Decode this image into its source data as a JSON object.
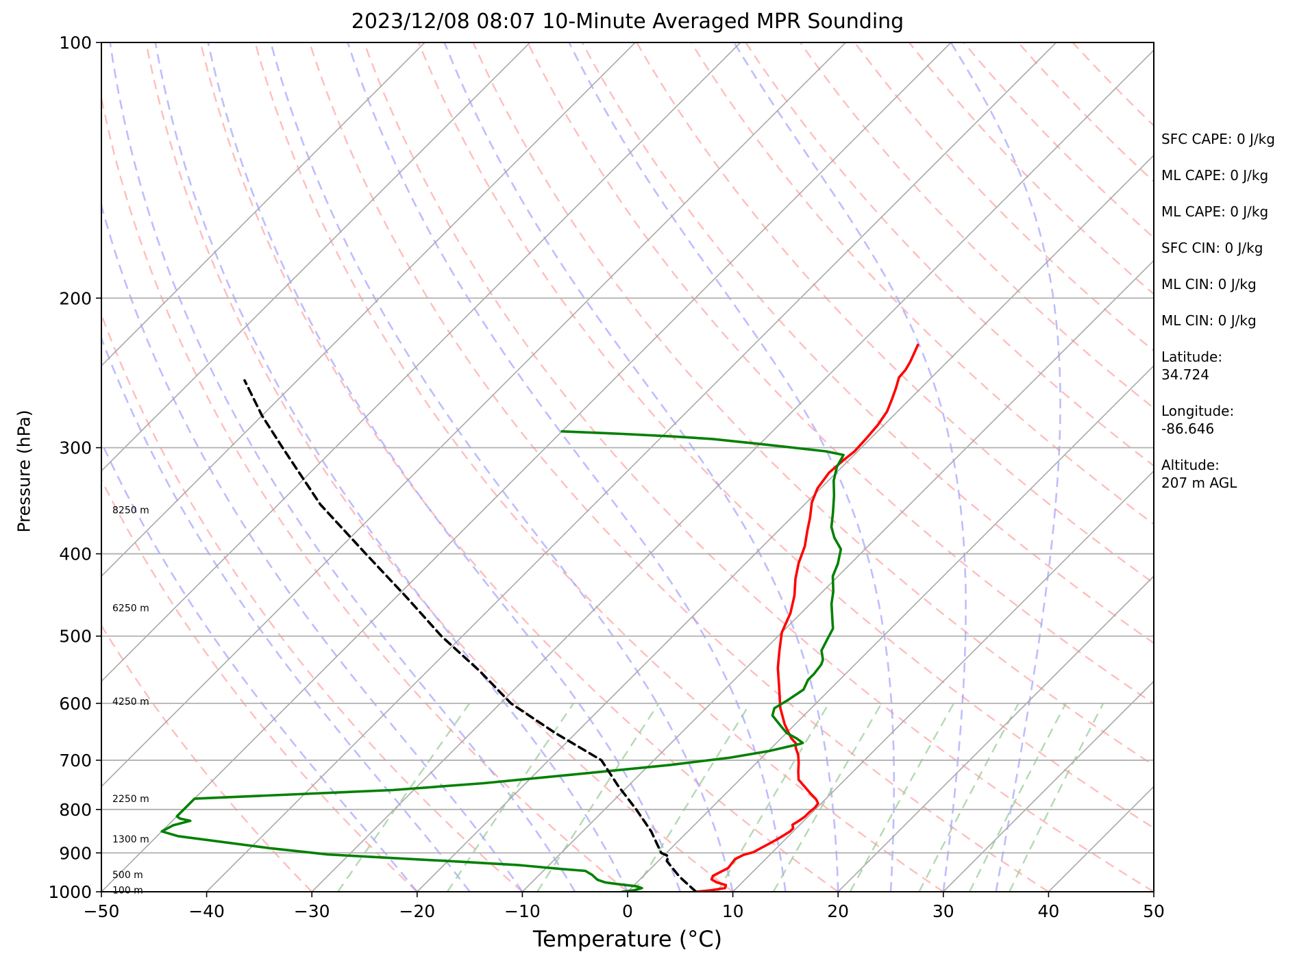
{
  "chart_data": {
    "type": "line",
    "subtype": "skew-T log-P sounding",
    "title": "2023/12/08 08:07 10-Minute Averaged MPR Sounding",
    "xlabel": "Temperature (°C)",
    "ylabel": "Pressure (hPa)",
    "xlim": [
      -50,
      50
    ],
    "ylim": [
      1000,
      100
    ],
    "y_scale": "log",
    "grid": true,
    "x_ticks": [
      "−50",
      "−40",
      "−30",
      "−20",
      "−10",
      "0",
      "10",
      "20",
      "30",
      "40",
      "50"
    ],
    "y_ticks": [
      "100",
      "200",
      "300",
      "400",
      "500",
      "600",
      "700",
      "800",
      "900",
      "1000"
    ],
    "height_labels": [
      {
        "label": "100 m",
        "pressure": 995
      },
      {
        "label": "500 m",
        "pressure": 955
      },
      {
        "label": "1300 m",
        "pressure": 867
      },
      {
        "label": "2250 m",
        "pressure": 777
      },
      {
        "label": "4250 m",
        "pressure": 597
      },
      {
        "label": "6250 m",
        "pressure": 463
      },
      {
        "label": "8250 m",
        "pressure": 355
      }
    ],
    "series": [
      {
        "role": "temperature",
        "color": "#ff0000",
        "points": [
          [
            6.5,
            1000
          ],
          [
            7.8,
            996
          ],
          [
            8.9,
            990
          ],
          [
            8.7,
            982
          ],
          [
            7.6,
            975
          ],
          [
            6.8,
            967
          ],
          [
            6.6,
            958
          ],
          [
            7.0,
            946
          ],
          [
            7.3,
            938
          ],
          [
            7.2,
            926
          ],
          [
            7.1,
            915
          ],
          [
            7.5,
            905
          ],
          [
            8.2,
            898
          ],
          [
            8.5,
            889
          ],
          [
            8.8,
            880
          ],
          [
            9.2,
            868
          ],
          [
            9.5,
            857
          ],
          [
            9.7,
            849
          ],
          [
            9.7,
            842
          ],
          [
            9.3,
            834
          ],
          [
            9.5,
            826
          ],
          [
            9.7,
            816
          ],
          [
            9.7,
            806
          ],
          [
            9.8,
            796
          ],
          [
            9.7,
            787
          ],
          [
            9.1,
            778
          ],
          [
            8.2,
            768
          ],
          [
            7.0,
            754
          ],
          [
            5.6,
            738
          ],
          [
            4.8,
            722
          ],
          [
            4.0,
            705
          ],
          [
            3.2,
            690
          ],
          [
            2.3,
            677
          ],
          [
            1.9,
            669
          ],
          [
            1.0,
            660
          ],
          [
            -1.0,
            635
          ],
          [
            -3.0,
            607
          ],
          [
            -5.0,
            575
          ],
          [
            -7.0,
            545
          ],
          [
            -8.5,
            520
          ],
          [
            -10.0,
            495
          ],
          [
            -11.0,
            470
          ],
          [
            -12.3,
            448
          ],
          [
            -13.8,
            428
          ],
          [
            -15.0,
            410
          ],
          [
            -16.0,
            392
          ],
          [
            -17.3,
            375
          ],
          [
            -18.2,
            363
          ],
          [
            -19.5,
            348
          ],
          [
            -20.3,
            335
          ],
          [
            -20.7,
            321
          ],
          [
            -20.5,
            310
          ],
          [
            -20.3,
            303
          ],
          [
            -20.4,
            293
          ],
          [
            -20.6,
            282
          ],
          [
            -21.0,
            272
          ],
          [
            -21.7,
            263
          ],
          [
            -22.4,
            255
          ],
          [
            -23.1,
            248
          ],
          [
            -23.2,
            243
          ],
          [
            -23.5,
            238
          ],
          [
            -23.9,
            233
          ],
          [
            -24.4,
            227
          ]
        ]
      },
      {
        "role": "dewpoint",
        "color": "#008000",
        "points": [
          [
            -0.5,
            1000
          ],
          [
            0.5,
            996
          ],
          [
            1.0,
            990
          ],
          [
            0.3,
            985
          ],
          [
            -1.5,
            980
          ],
          [
            -3.0,
            975
          ],
          [
            -4.0,
            968
          ],
          [
            -5.0,
            955
          ],
          [
            -6.0,
            945
          ],
          [
            -8.5,
            940
          ],
          [
            -13.0,
            930
          ],
          [
            -20.0,
            920
          ],
          [
            -32.0,
            904
          ],
          [
            -38.0,
            889
          ],
          [
            -48.0,
            860
          ],
          [
            -50.0,
            849
          ],
          [
            -49.5,
            835
          ],
          [
            -48.3,
            825
          ],
          [
            -49.5,
            820
          ],
          [
            -50.0,
            815
          ],
          [
            -50.0,
            777
          ],
          [
            -42.0,
            769
          ],
          [
            -32.0,
            759
          ],
          [
            -24.0,
            745
          ],
          [
            -16.0,
            727
          ],
          [
            -8.0,
            709
          ],
          [
            -3.0,
            695
          ],
          [
            0.0,
            683
          ],
          [
            2.3,
            670
          ],
          [
            2.5,
            668
          ],
          [
            1.5,
            660
          ],
          [
            0.0,
            650
          ],
          [
            -1.5,
            635
          ],
          [
            -3.0,
            620
          ],
          [
            -3.5,
            608
          ],
          [
            -3.0,
            595
          ],
          [
            -2.5,
            578
          ],
          [
            -3.0,
            563
          ],
          [
            -3.0,
            554
          ],
          [
            -3.2,
            540
          ],
          [
            -3.5,
            533
          ],
          [
            -4.5,
            520
          ],
          [
            -5.0,
            505
          ],
          [
            -5.5,
            490
          ],
          [
            -6.5,
            477
          ],
          [
            -8.0,
            458
          ],
          [
            -9.0,
            443
          ],
          [
            -10.5,
            425
          ],
          [
            -11.2,
            411
          ],
          [
            -12.3,
            395
          ],
          [
            -14.0,
            383
          ],
          [
            -15.3,
            372
          ],
          [
            -16.5,
            358
          ],
          [
            -18.0,
            342
          ],
          [
            -19.5,
            328
          ],
          [
            -20.5,
            316
          ],
          [
            -21.0,
            306
          ],
          [
            -23.0,
            303
          ],
          [
            -30.0,
            297
          ],
          [
            -35.0,
            293
          ],
          [
            -39.0,
            291
          ],
          [
            -44.0,
            289
          ],
          [
            -50.0,
            287
          ]
        ]
      },
      {
        "role": "parcel-profile",
        "color": "#000000",
        "style": "dashed",
        "points": [
          [
            6.5,
            1000
          ],
          [
            3.5,
            960
          ],
          [
            0.8,
            920
          ],
          [
            0.5,
            908
          ],
          [
            -0.5,
            900
          ],
          [
            -3.5,
            849
          ],
          [
            -7.0,
            800
          ],
          [
            -11.0,
            750
          ],
          [
            -15.0,
            700
          ],
          [
            -22.0,
            650
          ],
          [
            -29.0,
            600
          ],
          [
            -35.0,
            550
          ],
          [
            -42.0,
            500
          ],
          [
            -49.0,
            450
          ],
          [
            -57.0,
            400
          ],
          [
            -66.0,
            350
          ],
          [
            -75.0,
            300
          ],
          [
            -80.0,
            275
          ],
          [
            -85.0,
            250
          ]
        ]
      }
    ],
    "reference_lines": {
      "isotherms_degC": [
        -100,
        -90,
        -80,
        -70,
        -60,
        -50,
        -40,
        -30,
        -20,
        -10,
        0,
        10,
        20,
        30,
        40,
        50
      ],
      "dry_adiabats_degC": [
        -30,
        -20,
        -10,
        0,
        10,
        20,
        30,
        40,
        50,
        60,
        70,
        80,
        90,
        100,
        110,
        120,
        130,
        140,
        150,
        160,
        170,
        180
      ],
      "moist_adiabats_degC": [
        -20,
        -15,
        -10,
        -5,
        0,
        5,
        10,
        15,
        20,
        25,
        30,
        35
      ],
      "mixing_ratio_lines_g_per_kg": [
        0.4,
        1,
        2,
        4,
        7,
        10,
        16,
        24,
        32,
        40
      ],
      "colors": {
        "isotherm": "#a8a8a8",
        "dry_adiabat": "#ff9999",
        "moist_adiabat": "#9999ff",
        "mixing_ratio": "#99cc99"
      }
    }
  },
  "stats": [
    "SFC CAPE: 0 J/kg",
    "ML CAPE: 0 J/kg",
    "ML CAPE: 0 J/kg",
    "SFC CIN: 0 J/kg",
    "ML CIN: 0 J/kg",
    "ML CIN: 0 J/kg",
    "Latitude:\n34.724",
    "Longitude:\n-86.646",
    "Altitude:\n207 m AGL"
  ]
}
